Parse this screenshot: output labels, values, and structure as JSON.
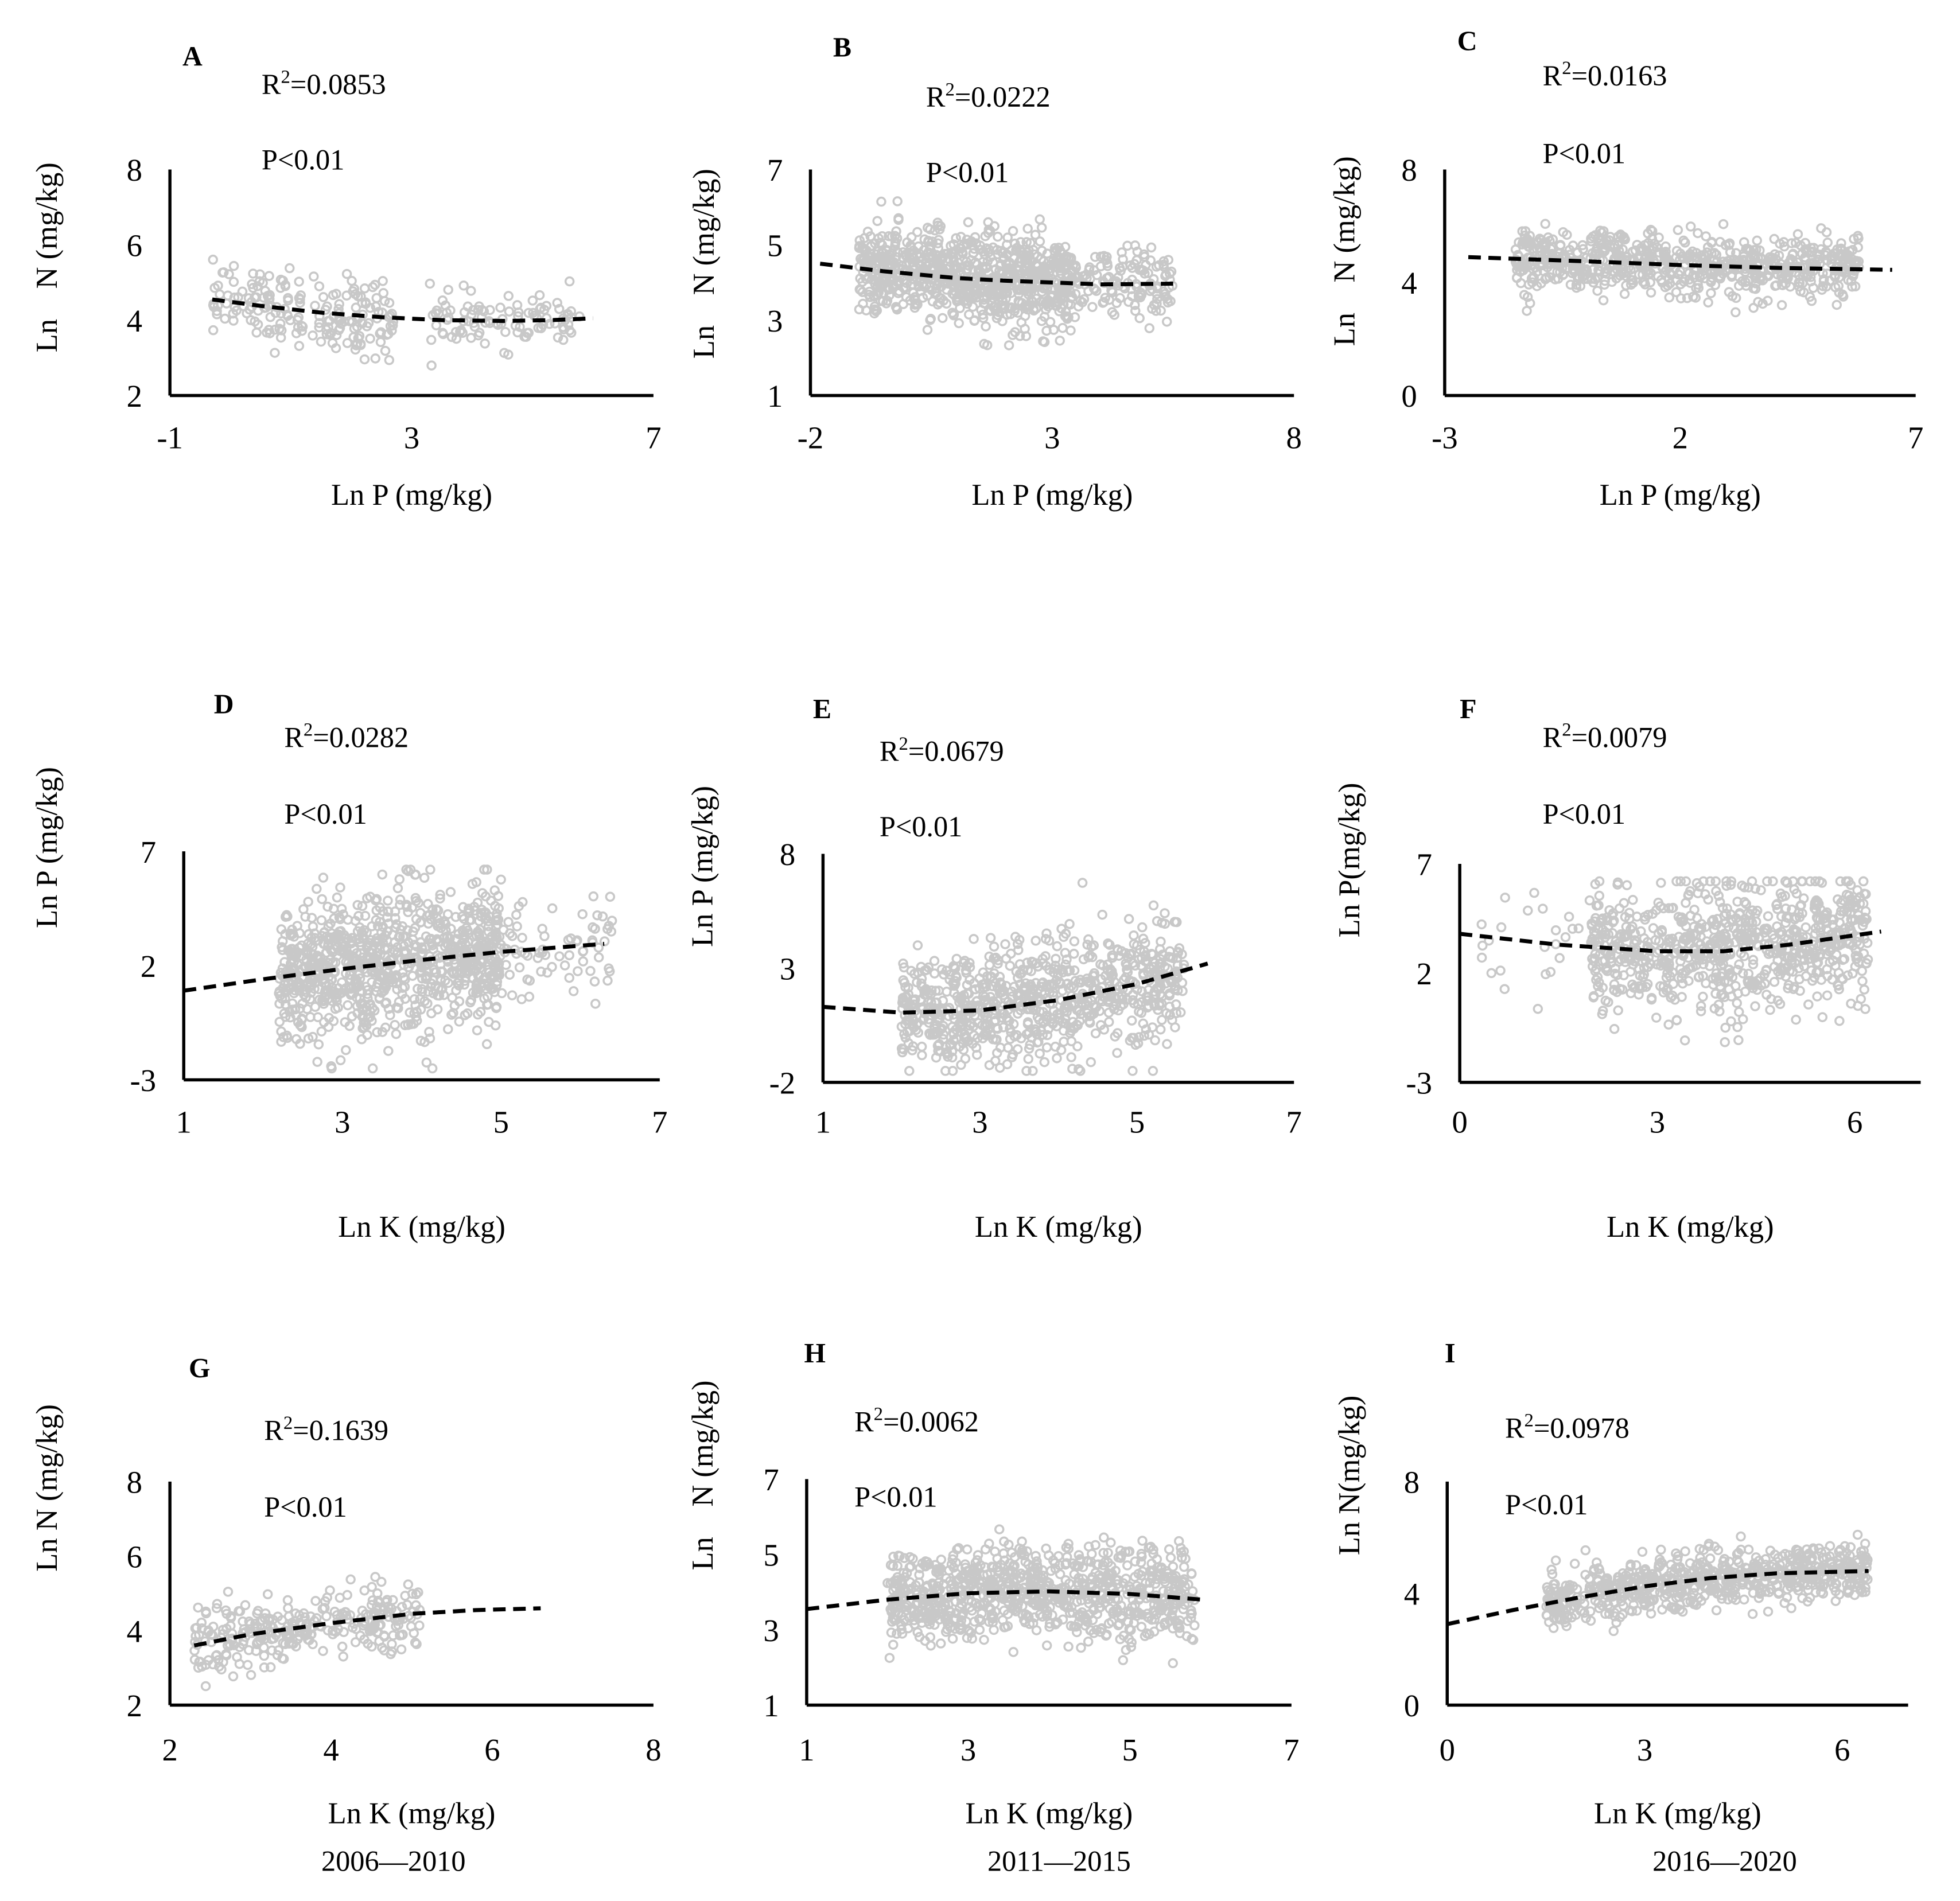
{
  "chart_data": [
    {
      "type": "scatter",
      "panel": "A",
      "xlabel": "Ln P (mg/kg)",
      "ylabel": "Ln    N (mg/kg)",
      "xlim": [
        -1,
        7
      ],
      "ylim": [
        2,
        8
      ],
      "xticks": [
        "-1",
        "3",
        "7"
      ],
      "yticks": [
        "2",
        "4",
        "6",
        "8"
      ],
      "r_squared": {
        "base": "R",
        "sup": "2",
        "value": "=0.0853"
      },
      "p_value": "P<0.01",
      "trend": [
        [
          -0.3,
          4.55
        ],
        [
          0.5,
          4.38
        ],
        [
          1.5,
          4.2
        ],
        [
          2.5,
          4.08
        ],
        [
          3.5,
          4.0
        ],
        [
          4.5,
          3.98
        ],
        [
          5.3,
          4.0
        ],
        [
          6.0,
          4.05
        ]
      ],
      "clusters": [
        {
          "x": [
            -0.3,
            2.7
          ],
          "sd": 0.5,
          "n": 190
        },
        {
          "x": [
            3.3,
            5.8
          ],
          "sd": 0.35,
          "n": 100
        }
      ]
    },
    {
      "type": "scatter",
      "panel": "B",
      "xlabel": "Ln P (mg/kg)",
      "ylabel": "Ln    N (mg/kg)",
      "xlim": [
        -2,
        8
      ],
      "ylim": [
        1,
        7
      ],
      "xticks": [
        "-2",
        "3",
        "8"
      ],
      "yticks": [
        "1",
        "3",
        "5",
        "7"
      ],
      "r_squared": {
        "base": "R",
        "sup": "2",
        "value": "=0.0222"
      },
      "p_value": "P<0.01",
      "trend": [
        [
          -1.8,
          4.5
        ],
        [
          -0.5,
          4.3
        ],
        [
          1,
          4.12
        ],
        [
          2,
          4.05
        ],
        [
          3,
          4.0
        ],
        [
          4,
          3.95
        ],
        [
          5.5,
          3.97
        ]
      ],
      "clusters": [
        {
          "x": [
            -1.0,
            3.4
          ],
          "sd": 0.6,
          "n": 800
        },
        {
          "x": [
            3.0,
            5.5
          ],
          "sd": 0.45,
          "n": 160
        }
      ]
    },
    {
      "type": "scatter",
      "panel": "C",
      "xlabel": "Ln P (mg/kg)",
      "ylabel": "Ln    N (mg/kg)",
      "xlim": [
        -3,
        7
      ],
      "ylim": [
        0,
        8
      ],
      "xticks": [
        "-3",
        "2",
        "7"
      ],
      "yticks": [
        "0",
        "4",
        "8"
      ],
      "r_squared": {
        "base": "R",
        "sup": "2",
        "value": "=0.0163"
      },
      "p_value": "P<0.01",
      "trend": [
        [
          -2.5,
          4.9
        ],
        [
          0,
          4.75
        ],
        [
          2,
          4.62
        ],
        [
          4,
          4.52
        ],
        [
          6.5,
          4.45
        ]
      ],
      "clusters": [
        {
          "x": [
            -1.5,
            5.8
          ],
          "sd": 0.55,
          "n": 700
        }
      ]
    },
    {
      "type": "scatter",
      "panel": "D",
      "xlabel": "Ln K (mg/kg)",
      "ylabel": "Ln P (mg/kg)",
      "xlim": [
        1,
        7
      ],
      "ylim": [
        -3,
        7
      ],
      "xticks": [
        "1",
        "3",
        "5",
        "7"
      ],
      "yticks": [
        "-3",
        "2",
        "7"
      ],
      "r_squared": {
        "base": "R",
        "sup": "2",
        "value": "=0.0282"
      },
      "p_value": "P<0.01",
      "trend": [
        [
          1,
          0.9
        ],
        [
          2,
          1.4
        ],
        [
          3,
          1.85
        ],
        [
          4,
          2.25
        ],
        [
          5,
          2.6
        ],
        [
          6.3,
          2.95
        ]
      ],
      "clusters": [
        {
          "x": [
            2.2,
            5.0
          ],
          "sd": 1.5,
          "n": 900
        },
        {
          "x": [
            4.5,
            6.4
          ],
          "sd": 1.2,
          "n": 110
        }
      ]
    },
    {
      "type": "scatter",
      "panel": "E",
      "xlabel": "Ln K (mg/kg)",
      "ylabel": "Ln P (mg/kg)",
      "xlim": [
        1,
        7
      ],
      "ylim": [
        -2,
        8
      ],
      "xticks": [
        "1",
        "3",
        "5",
        "7"
      ],
      "yticks": [
        "-2",
        "3",
        "8"
      ],
      "r_squared": {
        "base": "R",
        "sup": "2",
        "value": "=0.0679"
      },
      "p_value": "P<0.01",
      "trend": [
        [
          1,
          1.3
        ],
        [
          2,
          1.05
        ],
        [
          3,
          1.15
        ],
        [
          4,
          1.6
        ],
        [
          5,
          2.3
        ],
        [
          5.9,
          3.2
        ]
      ],
      "clusters": [
        {
          "x": [
            2.0,
            5.6
          ],
          "sd": 1.3,
          "n": 800
        }
      ]
    },
    {
      "type": "scatter",
      "panel": "F",
      "xlabel": "Ln K (mg/kg)",
      "ylabel": "Ln P(mg/kg)",
      "xlim": [
        0,
        7
      ],
      "ylim": [
        -3,
        7
      ],
      "xticks": [
        "0",
        "3",
        "6"
      ],
      "yticks": [
        "-3",
        "2",
        "7"
      ],
      "r_squared": {
        "base": "R",
        "sup": "2",
        "value": "=0.0079"
      },
      "p_value": "P<0.01",
      "trend": [
        [
          0,
          3.8
        ],
        [
          1.5,
          3.3
        ],
        [
          3,
          3.0
        ],
        [
          4,
          3.0
        ],
        [
          5,
          3.3
        ],
        [
          6.4,
          3.9
        ]
      ],
      "clusters": [
        {
          "x": [
            2.0,
            6.2
          ],
          "sd": 1.5,
          "n": 800
        },
        {
          "x": [
            0.3,
            2.0
          ],
          "sd": 1.2,
          "n": 25
        }
      ]
    },
    {
      "type": "scatter",
      "panel": "G",
      "xlabel": "Ln K (mg/kg)",
      "ylabel": "Ln N (mg/kg)",
      "xlim": [
        2,
        8
      ],
      "ylim": [
        2,
        8
      ],
      "xticks": [
        "2",
        "4",
        "6",
        "8"
      ],
      "yticks": [
        "2",
        "4",
        "6",
        "8"
      ],
      "r_squared": {
        "base": "R",
        "sup": "2",
        "value": "=0.1639"
      },
      "p_value": "P<0.01",
      "trend": [
        [
          2.3,
          3.6
        ],
        [
          3,
          3.9
        ],
        [
          4,
          4.2
        ],
        [
          5,
          4.45
        ],
        [
          5.8,
          4.55
        ],
        [
          6.6,
          4.6
        ]
      ],
      "clusters": [
        {
          "x": [
            2.3,
            5.1
          ],
          "sd": 0.45,
          "n": 300
        }
      ]
    },
    {
      "type": "scatter",
      "panel": "H",
      "xlabel": "Ln K (mg/kg)",
      "ylabel": "Ln    N (mg/kg)",
      "xlim": [
        1,
        7
      ],
      "ylim": [
        1,
        7
      ],
      "xticks": [
        "1",
        "3",
        "5",
        "7"
      ],
      "yticks": [
        "1",
        "3",
        "5",
        "7"
      ],
      "r_squared": {
        "base": "R",
        "sup": "2",
        "value": "=0.0062"
      },
      "p_value": "P<0.01",
      "trend": [
        [
          1,
          3.55
        ],
        [
          2,
          3.8
        ],
        [
          3,
          3.97
        ],
        [
          4,
          4.02
        ],
        [
          5,
          3.95
        ],
        [
          5.9,
          3.8
        ]
      ],
      "clusters": [
        {
          "x": [
            2.0,
            5.8
          ],
          "sd": 0.6,
          "n": 900
        }
      ]
    },
    {
      "type": "scatter",
      "panel": "I",
      "xlabel": "Ln K (mg/kg)",
      "ylabel": "Ln N(mg/kg)",
      "xlim": [
        0,
        7
      ],
      "ylim": [
        0,
        8
      ],
      "xticks": [
        "0",
        "3",
        "6"
      ],
      "yticks": [
        "0",
        "4",
        "8"
      ],
      "r_squared": {
        "base": "R",
        "sup": "2",
        "value": "=0.0978"
      },
      "p_value": "P<0.01",
      "trend": [
        [
          0,
          2.9
        ],
        [
          1,
          3.4
        ],
        [
          2,
          3.85
        ],
        [
          3,
          4.25
        ],
        [
          4,
          4.55
        ],
        [
          5,
          4.72
        ],
        [
          6.4,
          4.8
        ]
      ],
      "clusters": [
        {
          "x": [
            1.5,
            6.4
          ],
          "sd": 0.5,
          "n": 700
        }
      ]
    }
  ],
  "periods": [
    "2006—2010",
    "2011—2015",
    "2016—2020"
  ],
  "colors": {
    "points": "#c8c8c8",
    "trend": "#000000",
    "axis": "#000000"
  }
}
